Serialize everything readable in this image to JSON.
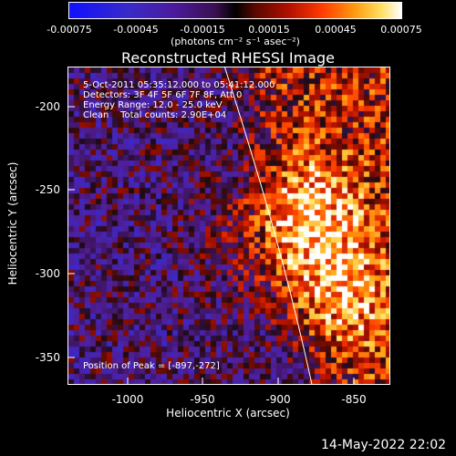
{
  "colorbar": {
    "ticks": [
      "-0.00075",
      "-0.00045",
      "-0.00015",
      "0.00015",
      "0.00045",
      "0.00075"
    ],
    "units": "(photons cm⁻² s⁻¹ asec⁻²)"
  },
  "title": "Reconstructed RHESSI Image",
  "annotations": {
    "time_range": "5-Oct-2011 05:35:12.000 to 05:41:12.000",
    "detectors": "Detectors: 3F 4F 5F 6F 7F 8F, Att 0",
    "energy": "Energy Range: 12.0 - 25.0 keV",
    "clean": "Clean    Total counts: 2.90E+04",
    "peak": "Position of Peak = [-897,-272]"
  },
  "axes": {
    "xlabel": "Heliocentric X (arcsec)",
    "ylabel": "Heliocentric Y (arcsec)",
    "xticks": [
      "-1000",
      "-950",
      "-900",
      "-850"
    ],
    "yticks": [
      "-200",
      "-250",
      "-300",
      "-350"
    ],
    "xrange": [
      -1035,
      -830
    ],
    "yrange": [
      -368,
      -178
    ]
  },
  "footer": {
    "date": "14-May-2022 22:02"
  }
}
